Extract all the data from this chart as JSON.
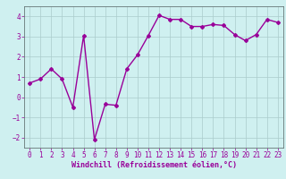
{
  "x": [
    0,
    1,
    2,
    3,
    4,
    5,
    6,
    7,
    8,
    9,
    10,
    11,
    12,
    13,
    14,
    15,
    16,
    17,
    18,
    19,
    20,
    21,
    22,
    23
  ],
  "y": [
    0.7,
    0.9,
    1.4,
    0.9,
    -0.5,
    3.05,
    -2.1,
    -0.35,
    -0.4,
    1.4,
    2.1,
    3.05,
    4.05,
    3.85,
    3.85,
    3.5,
    3.5,
    3.6,
    3.55,
    3.1,
    2.8,
    3.1,
    3.85,
    3.7
  ],
  "line_color": "#990099",
  "marker": "D",
  "marker_size": 2.0,
  "bg_color": "#cff0f0",
  "grid_color": "#aacccc",
  "xlabel": "Windchill (Refroidissement éolien,°C)",
  "xlabel_fontsize": 6.0,
  "tick_fontsize": 5.5,
  "ylim": [
    -2.5,
    4.5
  ],
  "xlim": [
    -0.5,
    23.5
  ],
  "yticks": [
    -2,
    -1,
    0,
    1,
    2,
    3,
    4
  ],
  "xticks": [
    0,
    1,
    2,
    3,
    4,
    5,
    6,
    7,
    8,
    9,
    10,
    11,
    12,
    13,
    14,
    15,
    16,
    17,
    18,
    19,
    20,
    21,
    22,
    23
  ],
  "line_width": 1.0
}
